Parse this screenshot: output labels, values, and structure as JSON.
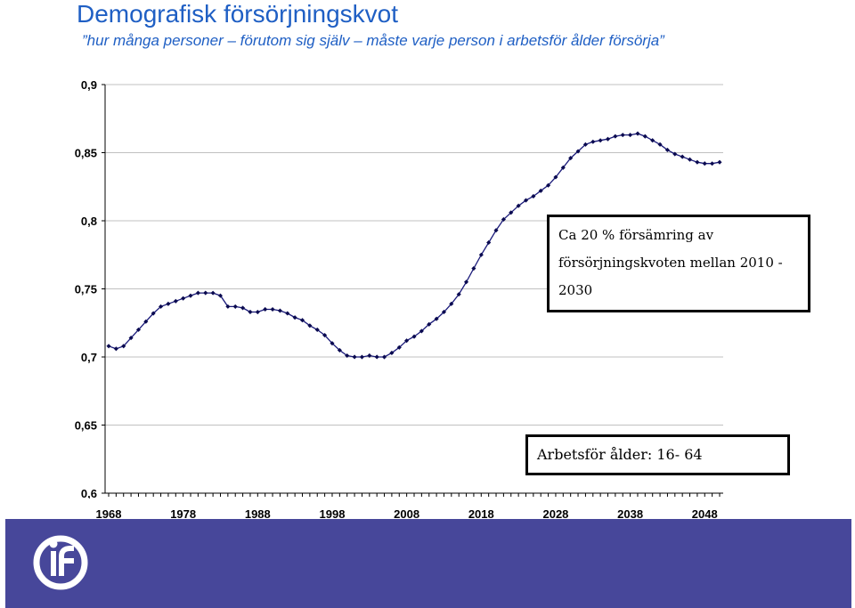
{
  "title": "Demografisk försörjningskvot",
  "subtitle": "”hur många personer – förutom sig själv – måste varje person i arbetsför ålder försörja”",
  "chart_data": {
    "type": "line",
    "title": "",
    "xlabel": "",
    "ylabel": "",
    "ylim": [
      0.6,
      0.9
    ],
    "xlim": [
      1968,
      2050
    ],
    "x_ticks": [
      "1968",
      "1978",
      "1988",
      "1998",
      "2008",
      "2018",
      "2028",
      "2038",
      "2048"
    ],
    "y_ticks": [
      "0,6",
      "0,65",
      "0,7",
      "0,75",
      "0,8",
      "0,85",
      "0,9"
    ],
    "grid": "horizontal",
    "legend": "none",
    "series": [
      {
        "color": "#1a1a7a",
        "x": [
          1968,
          1969,
          1970,
          1971,
          1972,
          1973,
          1974,
          1975,
          1976,
          1977,
          1978,
          1979,
          1980,
          1981,
          1982,
          1983,
          1984,
          1985,
          1986,
          1987,
          1988,
          1989,
          1990,
          1991,
          1992,
          1993,
          1994,
          1995,
          1996,
          1997,
          1998,
          1999,
          2000,
          2001,
          2002,
          2003,
          2004,
          2005,
          2006,
          2007,
          2008,
          2009,
          2010,
          2011,
          2012,
          2013,
          2014,
          2015,
          2016,
          2017,
          2018,
          2019,
          2020,
          2021,
          2022,
          2023,
          2024,
          2025,
          2026,
          2027,
          2028,
          2029,
          2030,
          2031,
          2032,
          2033,
          2034,
          2035,
          2036,
          2037,
          2038,
          2039,
          2040,
          2041,
          2042,
          2043,
          2044,
          2045,
          2046,
          2047,
          2048,
          2049,
          2050
        ],
        "values": [
          0.708,
          0.706,
          0.708,
          0.714,
          0.72,
          0.726,
          0.732,
          0.737,
          0.739,
          0.741,
          0.743,
          0.745,
          0.747,
          0.747,
          0.747,
          0.745,
          0.737,
          0.737,
          0.736,
          0.733,
          0.733,
          0.735,
          0.735,
          0.734,
          0.732,
          0.729,
          0.727,
          0.723,
          0.72,
          0.716,
          0.71,
          0.705,
          0.701,
          0.7,
          0.7,
          0.701,
          0.7,
          0.7,
          0.703,
          0.707,
          0.712,
          0.715,
          0.719,
          0.724,
          0.728,
          0.733,
          0.739,
          0.746,
          0.755,
          0.765,
          0.775,
          0.784,
          0.793,
          0.801,
          0.806,
          0.811,
          0.815,
          0.818,
          0.822,
          0.826,
          0.832,
          0.839,
          0.846,
          0.851,
          0.856,
          0.858,
          0.859,
          0.86,
          0.862,
          0.863,
          0.863,
          0.864,
          0.862,
          0.859,
          0.856,
          0.852,
          0.849,
          0.847,
          0.845,
          0.843,
          0.842,
          0.842,
          0.843
        ]
      }
    ],
    "annotations": [
      "Ca 20 % försämring av försörjningskvoten mellan 2010 - 2030",
      "Arbetsför ålder: 16- 64"
    ]
  },
  "annotation_1_lines": [
    "Ca 20 % försämring av",
    "försörjningskvoten mellan 2010 -",
    "2030"
  ],
  "annotation_2": "Arbetsför ålder: 16- 64",
  "colors": {
    "title": "#1f5fc4",
    "line": "#1a1a7a",
    "marker": "#0a0a50",
    "footer": "#47479a",
    "grid": "#c0c0c0"
  },
  "footer": {
    "logo_icon": "ifau-logo-icon"
  }
}
